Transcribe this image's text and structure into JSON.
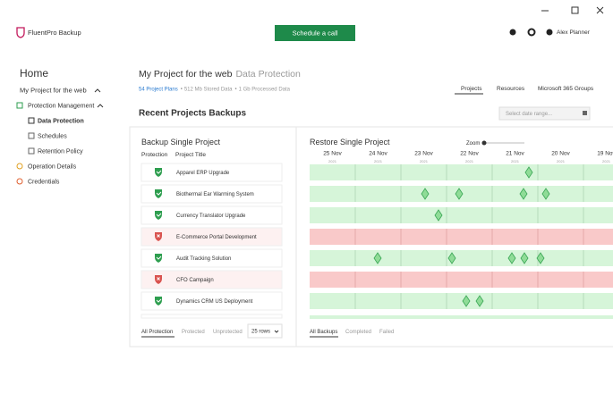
{
  "header": {
    "app_name": "FluentPro Backup",
    "button": "Schedule a call",
    "user": "Alex Planner"
  },
  "sidebar": {
    "home": "Home",
    "project": "My Project for the web",
    "items": [
      "Protection Management",
      "Data Protection",
      "Schedules",
      "Retention Policy",
      "Operation Details",
      "Credentials"
    ]
  },
  "page": {
    "title": "My Project for the web",
    "subtitle": "Data Protection",
    "stats": [
      "54 Project Plans",
      "512 Mb Stored Data",
      "1 Gb Processed Data"
    ],
    "tabs": [
      "Projects",
      "Resources",
      "Microsoft 365 Groups"
    ],
    "section_title": "Recent Projects Backups",
    "date_placeholder": "Select date range..."
  },
  "backup_panel": {
    "title": "Backup Single Project",
    "columns": [
      "Protection",
      "Project Title"
    ],
    "rows": [
      {
        "title": "Apparel ERP Upgrade",
        "protected": true
      },
      {
        "title": "Biothermal Ear Warming System",
        "protected": true
      },
      {
        "title": "Currency Translator Upgrade",
        "protected": true
      },
      {
        "title": "E-Commerce Portal Development",
        "protected": false
      },
      {
        "title": "Audit Tracking Solution",
        "protected": true
      },
      {
        "title": "CFO Campaign",
        "protected": false
      },
      {
        "title": "Dynamics CRM US Deployment",
        "protected": true
      }
    ],
    "filters": [
      "All Protection",
      "Protected",
      "Unprotected"
    ],
    "rows_select": "25 rows"
  },
  "restore_panel": {
    "title": "Restore Single Project",
    "zoom": "Zoom",
    "dates": [
      {
        "day": "25 Nov",
        "year": "2021"
      },
      {
        "day": "24 Nov",
        "year": "2021"
      },
      {
        "day": "23 Nov",
        "year": "2021"
      },
      {
        "day": "22 Nov",
        "year": "2021"
      },
      {
        "day": "21 Nov",
        "year": "2021"
      },
      {
        "day": "20 Nov",
        "year": "2021"
      },
      {
        "day": "19 Nov",
        "year": "2021"
      }
    ],
    "filters": [
      "All Backups",
      "Completed",
      "Failed"
    ]
  }
}
